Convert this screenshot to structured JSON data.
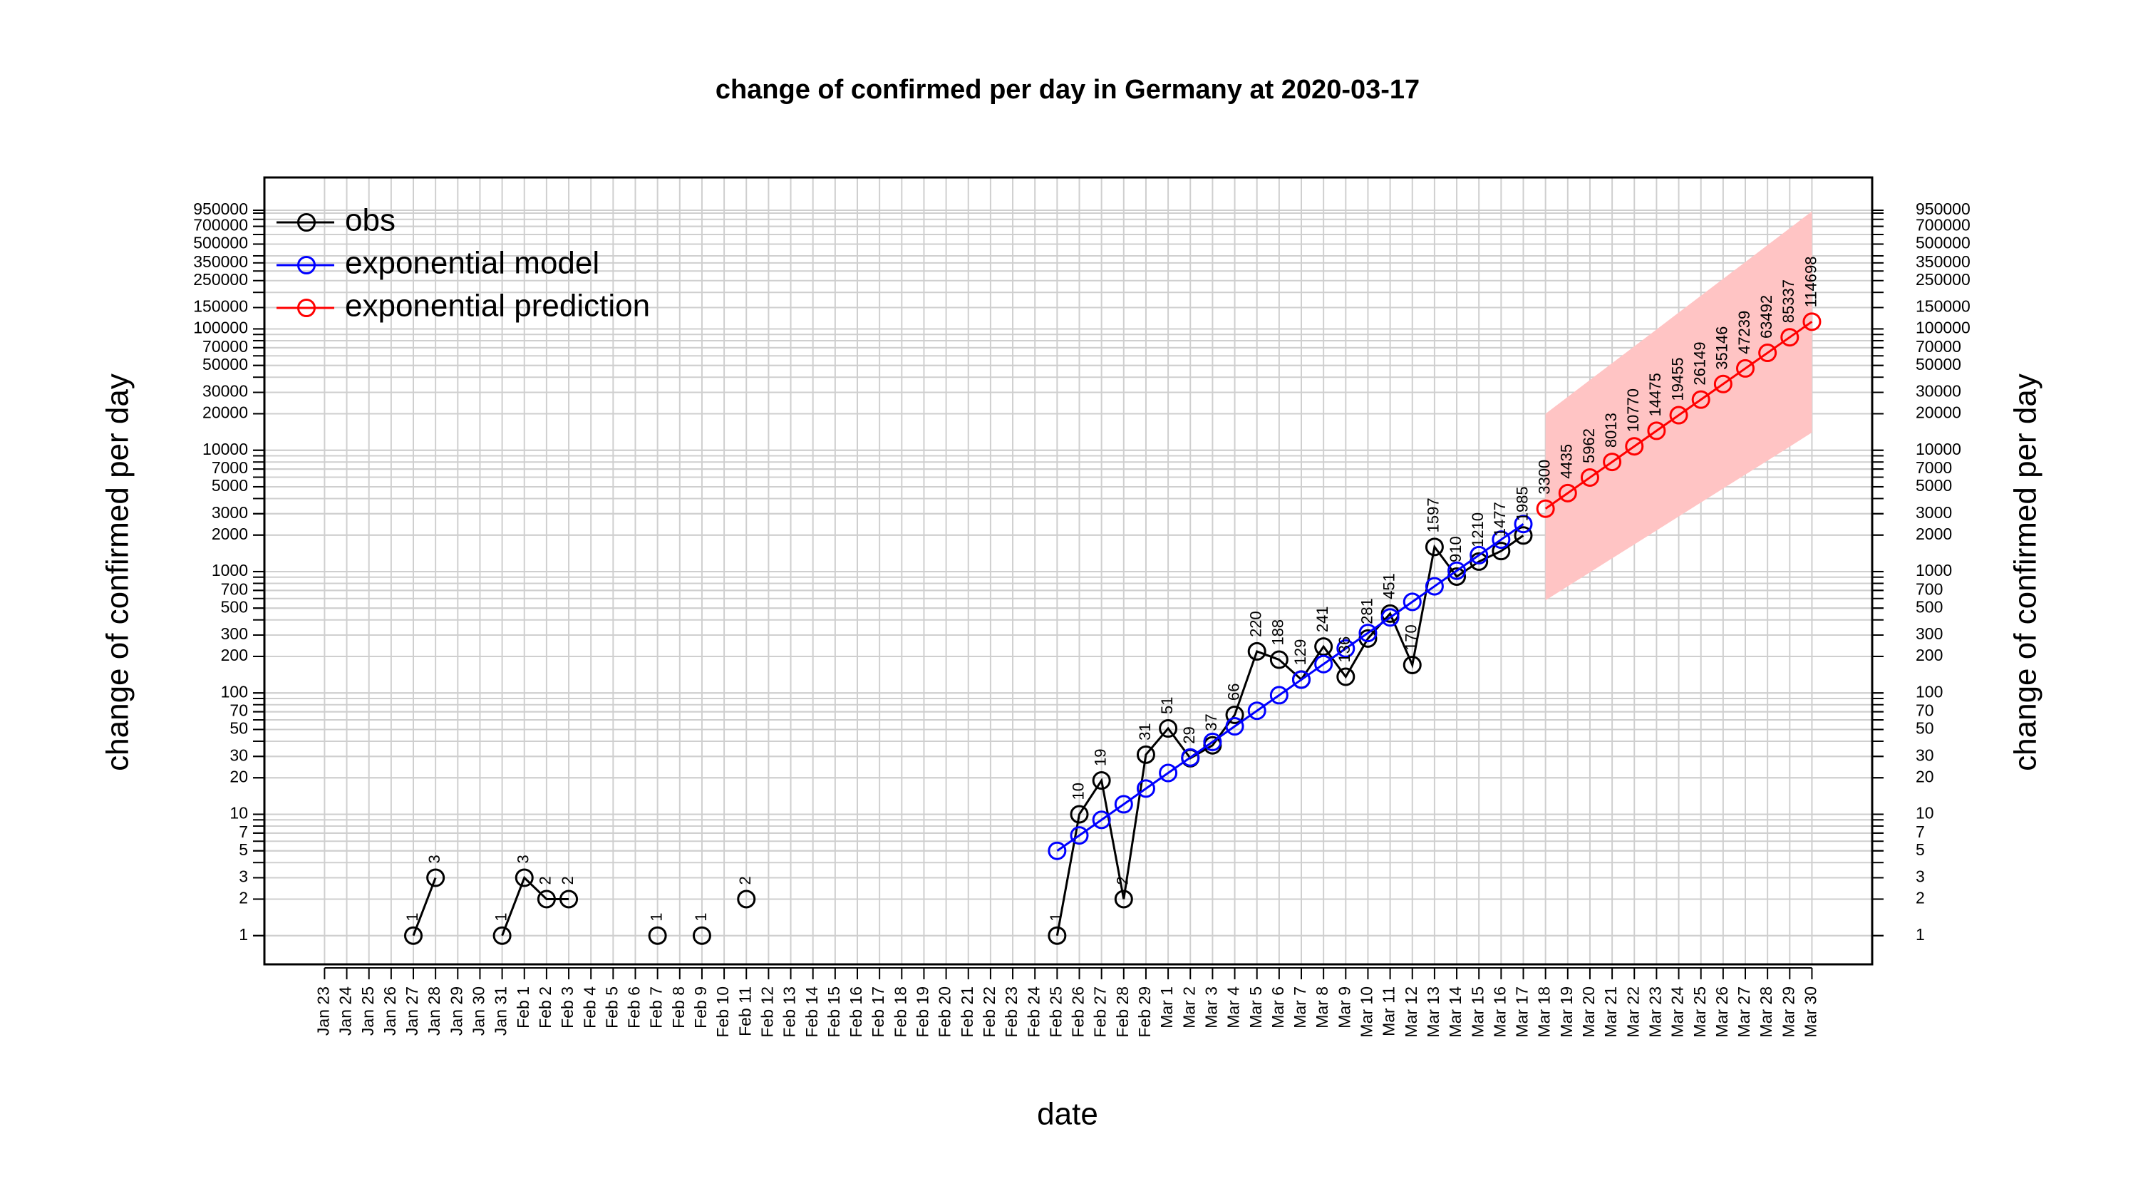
{
  "chart_data": {
    "type": "line",
    "title": "change of confirmed per day in Germany at 2020-03-17",
    "x_label": "date",
    "y_label": "change of confirmed per day",
    "y2_label": "change of confirmed per day",
    "log_y": true,
    "grid": true,
    "legend_position": "top-left",
    "categories": [
      "Jan 23",
      "Jan 24",
      "Jan 25",
      "Jan 26",
      "Jan 27",
      "Jan 28",
      "Jan 29",
      "Jan 30",
      "Jan 31",
      "Feb 1",
      "Feb 2",
      "Feb 3",
      "Feb 4",
      "Feb 5",
      "Feb 6",
      "Feb 7",
      "Feb 8",
      "Feb 9",
      "Feb 10",
      "Feb 11",
      "Feb 12",
      "Feb 13",
      "Feb 14",
      "Feb 15",
      "Feb 16",
      "Feb 17",
      "Feb 18",
      "Feb 19",
      "Feb 20",
      "Feb 21",
      "Feb 22",
      "Feb 23",
      "Feb 24",
      "Feb 25",
      "Feb 26",
      "Feb 27",
      "Feb 28",
      "Feb 29",
      "Mar 1",
      "Mar 2",
      "Mar 3",
      "Mar 4",
      "Mar 5",
      "Mar 6",
      "Mar 7",
      "Mar 8",
      "Mar 9",
      "Mar 10",
      "Mar 11",
      "Mar 12",
      "Mar 13",
      "Mar 14",
      "Mar 15",
      "Mar 16",
      "Mar 17",
      "Mar 18",
      "Mar 19",
      "Mar 20",
      "Mar 21",
      "Mar 22",
      "Mar 23",
      "Mar 24",
      "Mar 25",
      "Mar 26",
      "Mar 27",
      "Mar 28",
      "Mar 29",
      "Mar 30"
    ],
    "ylim": [
      0.58,
      1770000
    ],
    "yticks": [
      1,
      2,
      3,
      5,
      7,
      10,
      20,
      30,
      50,
      70,
      100,
      200,
      300,
      500,
      700,
      1000,
      2000,
      3000,
      5000,
      7000,
      10000,
      20000,
      30000,
      50000,
      70000,
      100000,
      150000,
      250000,
      350000,
      500000,
      700000,
      950000
    ],
    "ygrid": [
      1,
      2,
      3,
      4,
      5,
      6,
      7,
      8,
      9,
      10,
      20,
      30,
      40,
      50,
      60,
      70,
      80,
      90,
      100,
      200,
      300,
      400,
      500,
      600,
      700,
      800,
      900,
      1000,
      2000,
      3000,
      4000,
      5000,
      6000,
      7000,
      8000,
      9000,
      10000,
      20000,
      30000,
      40000,
      50000,
      60000,
      70000,
      80000,
      90000,
      100000,
      200000,
      300000,
      400000,
      500000,
      600000,
      700000,
      800000,
      900000
    ],
    "series": [
      {
        "name": "obs",
        "color": "#000000",
        "show_labels": true,
        "values": [
          null,
          null,
          null,
          null,
          1,
          3,
          null,
          null,
          1,
          3,
          2,
          2,
          null,
          null,
          null,
          1,
          null,
          1,
          null,
          2,
          null,
          null,
          null,
          null,
          null,
          null,
          null,
          null,
          null,
          null,
          null,
          null,
          null,
          1,
          10,
          19,
          2,
          31,
          51,
          29,
          37,
          66,
          220,
          188,
          129,
          241,
          136,
          281,
          451,
          170,
          1597,
          910,
          1210,
          1477,
          1985,
          null,
          null,
          null,
          null,
          null,
          null,
          null,
          null,
          null,
          null,
          null,
          null,
          null
        ]
      },
      {
        "name": "exponential model",
        "color": "#0000ff",
        "show_labels": false,
        "values": [
          null,
          null,
          null,
          null,
          null,
          null,
          null,
          null,
          null,
          null,
          null,
          null,
          null,
          null,
          null,
          null,
          null,
          null,
          null,
          null,
          null,
          null,
          null,
          null,
          null,
          null,
          null,
          null,
          null,
          null,
          null,
          null,
          null,
          5.0,
          6.7,
          9.0,
          12.1,
          16.3,
          21.9,
          29.4,
          39.5,
          53.1,
          71.3,
          95.8,
          128.7,
          172.9,
          232.3,
          312.1,
          419.3,
          563.4,
          756.9,
          1016.9,
          1366.2,
          1835.5,
          2466.0,
          null,
          null,
          null,
          null,
          null,
          null,
          null,
          null,
          null,
          null,
          null,
          null,
          null
        ]
      },
      {
        "name": "exponential prediction",
        "color": "#ff0000",
        "show_labels": true,
        "band_color": "#ffc4c4",
        "values": [
          null,
          null,
          null,
          null,
          null,
          null,
          null,
          null,
          null,
          null,
          null,
          null,
          null,
          null,
          null,
          null,
          null,
          null,
          null,
          null,
          null,
          null,
          null,
          null,
          null,
          null,
          null,
          null,
          null,
          null,
          null,
          null,
          null,
          null,
          null,
          null,
          null,
          null,
          null,
          null,
          null,
          null,
          null,
          null,
          null,
          null,
          null,
          null,
          null,
          null,
          null,
          null,
          null,
          null,
          null,
          3300,
          4435,
          5962,
          8013,
          10770,
          14475,
          19455,
          26149,
          35146,
          47239,
          63492,
          85337,
          114698
        ],
        "lower": [
          null,
          null,
          null,
          null,
          null,
          null,
          null,
          null,
          null,
          null,
          null,
          null,
          null,
          null,
          null,
          null,
          null,
          null,
          null,
          null,
          null,
          null,
          null,
          null,
          null,
          null,
          null,
          null,
          null,
          null,
          null,
          null,
          null,
          null,
          null,
          null,
          null,
          null,
          null,
          null,
          null,
          null,
          null,
          null,
          null,
          null,
          null,
          null,
          null,
          null,
          null,
          null,
          null,
          null,
          null,
          580,
          756,
          986,
          1285,
          1675,
          2183,
          2846,
          3710,
          4836,
          6304,
          8217,
          10711,
          14000
        ],
        "upper": [
          null,
          null,
          null,
          null,
          null,
          null,
          null,
          null,
          null,
          null,
          null,
          null,
          null,
          null,
          null,
          null,
          null,
          null,
          null,
          null,
          null,
          null,
          null,
          null,
          null,
          null,
          null,
          null,
          null,
          null,
          null,
          null,
          null,
          null,
          null,
          null,
          null,
          null,
          null,
          null,
          null,
          null,
          null,
          null,
          null,
          null,
          null,
          null,
          null,
          null,
          null,
          null,
          null,
          null,
          null,
          20000,
          27540,
          37920,
          52220,
          71910,
          99020,
          136400,
          187800,
          258600,
          356100,
          490400,
          675300,
          930000
        ]
      }
    ]
  }
}
